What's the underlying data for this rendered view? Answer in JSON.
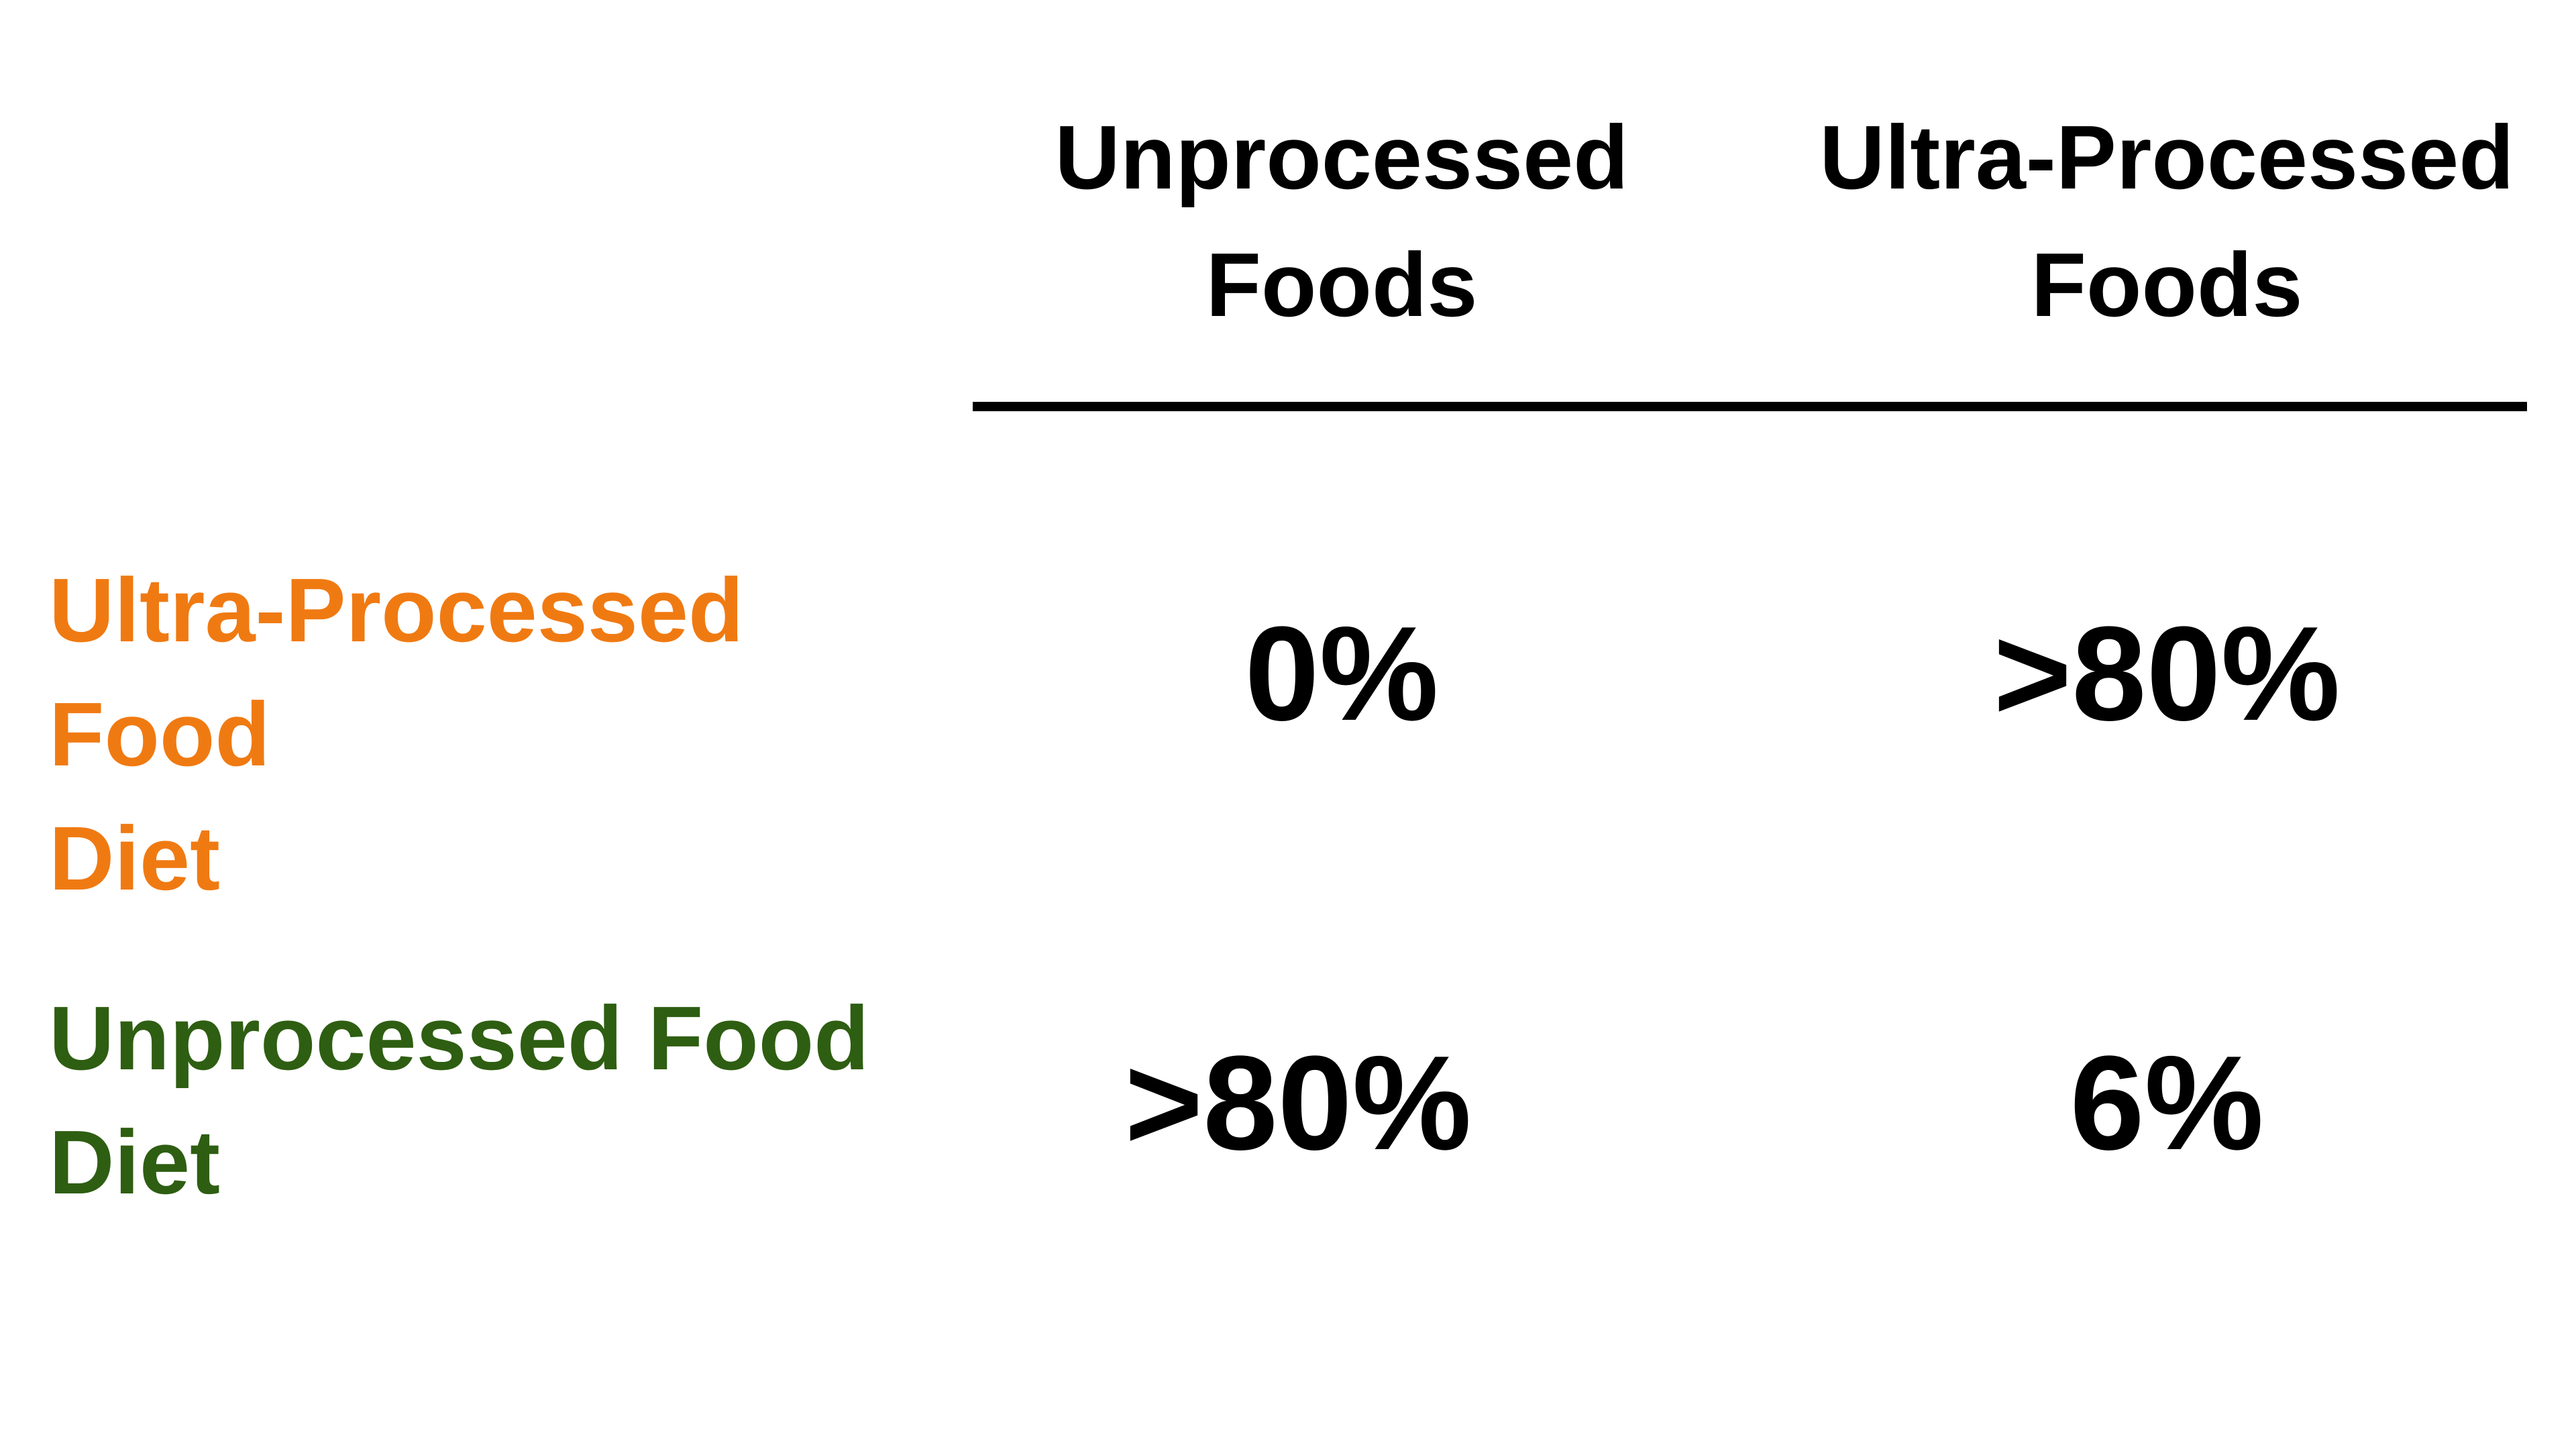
{
  "chart_data": {
    "type": "table",
    "columns": [
      {
        "line1": "Unprocessed",
        "line2": "Foods"
      },
      {
        "line1": "Ultra-Processed",
        "line2": "Foods"
      }
    ],
    "rows": [
      {
        "line1": "Ultra-Processed Food",
        "line2": "Diet",
        "color": "#F07A12",
        "values": [
          "0%",
          ">80%"
        ]
      },
      {
        "line1": "Unprocessed Food",
        "line2": "Diet",
        "color": "#2E5E12",
        "values": [
          ">80%",
          "6%"
        ]
      }
    ]
  }
}
